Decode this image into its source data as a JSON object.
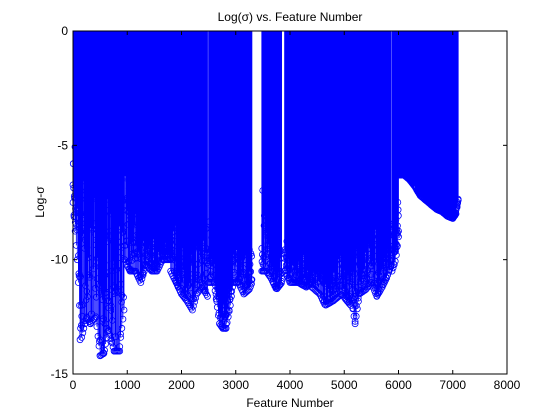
{
  "chart_data": {
    "type": "stem",
    "title": "Log(σ) vs. Feature Number",
    "xlabel": "Feature Number",
    "ylabel": "Log-σ",
    "xlim": [
      0,
      8000
    ],
    "ylim": [
      -15,
      0
    ],
    "xticks": [
      "0",
      "1000",
      "2000",
      "3000",
      "4000",
      "5000",
      "6000",
      "7000",
      "8000"
    ],
    "yticks": [
      "0",
      "-5",
      "-10",
      "-15"
    ],
    "grid": false,
    "legend": "none",
    "color": "#0000ff",
    "marker": "circle",
    "baseline": 0,
    "n_features": 7100,
    "dense_segments": [
      {
        "x_start": 0,
        "x_end": 950,
        "low_envelope": [
          [
            0,
            -7.5
          ],
          [
            80,
            -10
          ],
          [
            150,
            -13.5
          ],
          [
            250,
            -12.5
          ],
          [
            320,
            -12.8
          ],
          [
            420,
            -12.5
          ],
          [
            500,
            -14.2
          ],
          [
            570,
            -14.1
          ],
          [
            650,
            -13
          ],
          [
            760,
            -14
          ],
          [
            850,
            -14
          ],
          [
            950,
            -12
          ]
        ],
        "high_envelope": [
          [
            0,
            -4.5
          ],
          [
            80,
            -2.5
          ],
          [
            200,
            -4
          ],
          [
            400,
            -3.5
          ],
          [
            600,
            -4
          ],
          [
            800,
            -3
          ],
          [
            950,
            -3
          ]
        ]
      },
      {
        "x_start": 950,
        "x_end": 1800,
        "low_envelope": [
          [
            950,
            -10
          ],
          [
            1050,
            -10.5
          ],
          [
            1150,
            -10.5
          ],
          [
            1250,
            -11
          ],
          [
            1350,
            -10.2
          ],
          [
            1450,
            -10.5
          ],
          [
            1550,
            -10.5
          ],
          [
            1650,
            -10
          ],
          [
            1800,
            -10
          ]
        ],
        "high_envelope": [
          [
            950,
            -5
          ],
          [
            1100,
            -7
          ],
          [
            1250,
            -7.5
          ],
          [
            1400,
            -7.5
          ],
          [
            1550,
            -9
          ],
          [
            1650,
            -9
          ],
          [
            1800,
            -8
          ]
        ]
      },
      {
        "x_start": 1800,
        "x_end": 2480,
        "low_envelope": [
          [
            1800,
            -10.5
          ],
          [
            1900,
            -11
          ],
          [
            2000,
            -11.5
          ],
          [
            2100,
            -11.8
          ],
          [
            2200,
            -12.2
          ],
          [
            2280,
            -11.5
          ],
          [
            2380,
            -11.2
          ],
          [
            2480,
            -11.6
          ]
        ],
        "high_envelope": [
          [
            1800,
            -7
          ],
          [
            1950,
            -8.5
          ],
          [
            2100,
            -9
          ],
          [
            2250,
            -8.5
          ],
          [
            2400,
            -8
          ],
          [
            2480,
            -8
          ]
        ]
      },
      {
        "x_start": 2500,
        "x_end": 2950,
        "low_envelope": [
          [
            2500,
            -11
          ],
          [
            2600,
            -11
          ],
          [
            2700,
            -12.8
          ],
          [
            2760,
            -13
          ],
          [
            2820,
            -13
          ],
          [
            2900,
            -12
          ],
          [
            2950,
            -11
          ]
        ],
        "high_envelope": [
          [
            2500,
            -8
          ],
          [
            2650,
            -9
          ],
          [
            2750,
            -11
          ],
          [
            2850,
            -10
          ],
          [
            2950,
            -9
          ]
        ]
      },
      {
        "x_start": 2950,
        "x_end": 3300,
        "low_envelope": [
          [
            2950,
            -11
          ],
          [
            3050,
            -11
          ],
          [
            3150,
            -11.5
          ],
          [
            3250,
            -11.3
          ],
          [
            3300,
            -11
          ]
        ],
        "high_envelope": [
          [
            2950,
            -8
          ],
          [
            3100,
            -8.5
          ],
          [
            3200,
            -9
          ],
          [
            3300,
            -9
          ]
        ]
      },
      {
        "x_start": 3480,
        "x_end": 3850,
        "low_envelope": [
          [
            3480,
            -10.5
          ],
          [
            3560,
            -10.5
          ],
          [
            3650,
            -10.8
          ],
          [
            3750,
            -11.3
          ],
          [
            3850,
            -11
          ]
        ],
        "high_envelope": [
          [
            3480,
            -6.5
          ],
          [
            3560,
            -7.5
          ],
          [
            3700,
            -8.5
          ],
          [
            3850,
            -9
          ]
        ]
      },
      {
        "x_start": 3900,
        "x_end": 4400,
        "low_envelope": [
          [
            3900,
            -10.5
          ],
          [
            4000,
            -11
          ],
          [
            4150,
            -11
          ],
          [
            4300,
            -11.2
          ],
          [
            4400,
            -11
          ]
        ],
        "high_envelope": [
          [
            3900,
            -8.5
          ],
          [
            4100,
            -9
          ],
          [
            4300,
            -9.5
          ],
          [
            4400,
            -9.5
          ]
        ]
      },
      {
        "x_start": 4400,
        "x_end": 5120,
        "low_envelope": [
          [
            4400,
            -11.2
          ],
          [
            4550,
            -11.5
          ],
          [
            4650,
            -12
          ],
          [
            4800,
            -11.8
          ],
          [
            4950,
            -11.5
          ],
          [
            5050,
            -11.8
          ],
          [
            5120,
            -12
          ]
        ],
        "high_envelope": [
          [
            4400,
            -9.5
          ],
          [
            4600,
            -9
          ],
          [
            4800,
            -9.5
          ],
          [
            5000,
            -9.5
          ],
          [
            5120,
            -9
          ]
        ]
      },
      {
        "x_start": 5120,
        "x_end": 5500,
        "low_envelope": [
          [
            5120,
            -11.5
          ],
          [
            5200,
            -12.8
          ],
          [
            5280,
            -11.5
          ],
          [
            5400,
            -11.3
          ],
          [
            5500,
            -11
          ]
        ],
        "high_envelope": [
          [
            5120,
            -9
          ],
          [
            5250,
            -8
          ],
          [
            5400,
            -8.5
          ],
          [
            5500,
            -9
          ]
        ]
      },
      {
        "x_start": 5500,
        "x_end": 5860,
        "low_envelope": [
          [
            5500,
            -11
          ],
          [
            5600,
            -11.6
          ],
          [
            5700,
            -11.2
          ],
          [
            5780,
            -10.8
          ],
          [
            5860,
            -10.3
          ]
        ],
        "high_envelope": [
          [
            5500,
            -8
          ],
          [
            5620,
            -8.5
          ],
          [
            5750,
            -8.5
          ],
          [
            5860,
            -8
          ]
        ]
      },
      {
        "x_start": 5880,
        "x_end": 6000,
        "low_envelope": [
          [
            5880,
            -10.5
          ],
          [
            5950,
            -10
          ],
          [
            6000,
            -9
          ]
        ],
        "high_envelope": [
          [
            5880,
            -8.5
          ],
          [
            5950,
            -8
          ],
          [
            6000,
            -7
          ]
        ]
      },
      {
        "x_start": 6000,
        "x_end": 7100,
        "low_envelope": [
          [
            6000,
            -6.3
          ],
          [
            6100,
            -6.3
          ],
          [
            6200,
            -6.5
          ],
          [
            6300,
            -6.8
          ],
          [
            6400,
            -7.2
          ],
          [
            6500,
            -7.4
          ],
          [
            6600,
            -7.6
          ],
          [
            6700,
            -7.8
          ],
          [
            6800,
            -7.9
          ],
          [
            6900,
            -8.1
          ],
          [
            7000,
            -8.2
          ],
          [
            7060,
            -8.0
          ],
          [
            7100,
            -7.4
          ]
        ],
        "high_envelope": [
          [
            6000,
            -6.0
          ],
          [
            6100,
            -6.1
          ],
          [
            6200,
            -6.3
          ],
          [
            6300,
            -6.6
          ],
          [
            6400,
            -7.0
          ],
          [
            6500,
            -7.2
          ],
          [
            6600,
            -7.4
          ],
          [
            6700,
            -7.6
          ],
          [
            6800,
            -7.7
          ],
          [
            6900,
            -7.9
          ],
          [
            7000,
            -8.0
          ],
          [
            7060,
            -7.8
          ],
          [
            7100,
            -7.3
          ]
        ]
      }
    ],
    "outlier_points": [
      [
        130,
        -13.5
      ],
      [
        150,
        -12
      ],
      [
        250,
        -12.5
      ],
      [
        320,
        -12.8
      ],
      [
        500,
        -14.2
      ],
      [
        570,
        -14.1
      ],
      [
        650,
        -13.1
      ],
      [
        760,
        -14
      ],
      [
        860,
        -14
      ],
      [
        2820,
        -13
      ],
      [
        5200,
        -12.7
      ]
    ]
  }
}
